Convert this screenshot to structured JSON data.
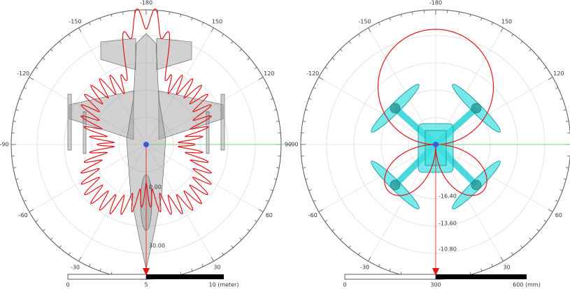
{
  "panels": [
    {
      "angle_labels": [
        -180,
        150,
        120,
        90,
        60,
        30,
        -30,
        -60,
        -90,
        -120,
        -150
      ],
      "radial_labels": [
        "0.00",
        "30.00"
      ],
      "scale_labels": [
        "0",
        "5",
        "10 (meter)"
      ]
    },
    {
      "angle_labels": [
        -180,
        150,
        120,
        60,
        30,
        -30,
        -60,
        -90,
        -120,
        -150
      ],
      "radial_labels": [
        "-16.40",
        "-13.60",
        "-10.80"
      ],
      "scale_labels": [
        "0",
        "300",
        "600 (mm)"
      ]
    }
  ]
}
